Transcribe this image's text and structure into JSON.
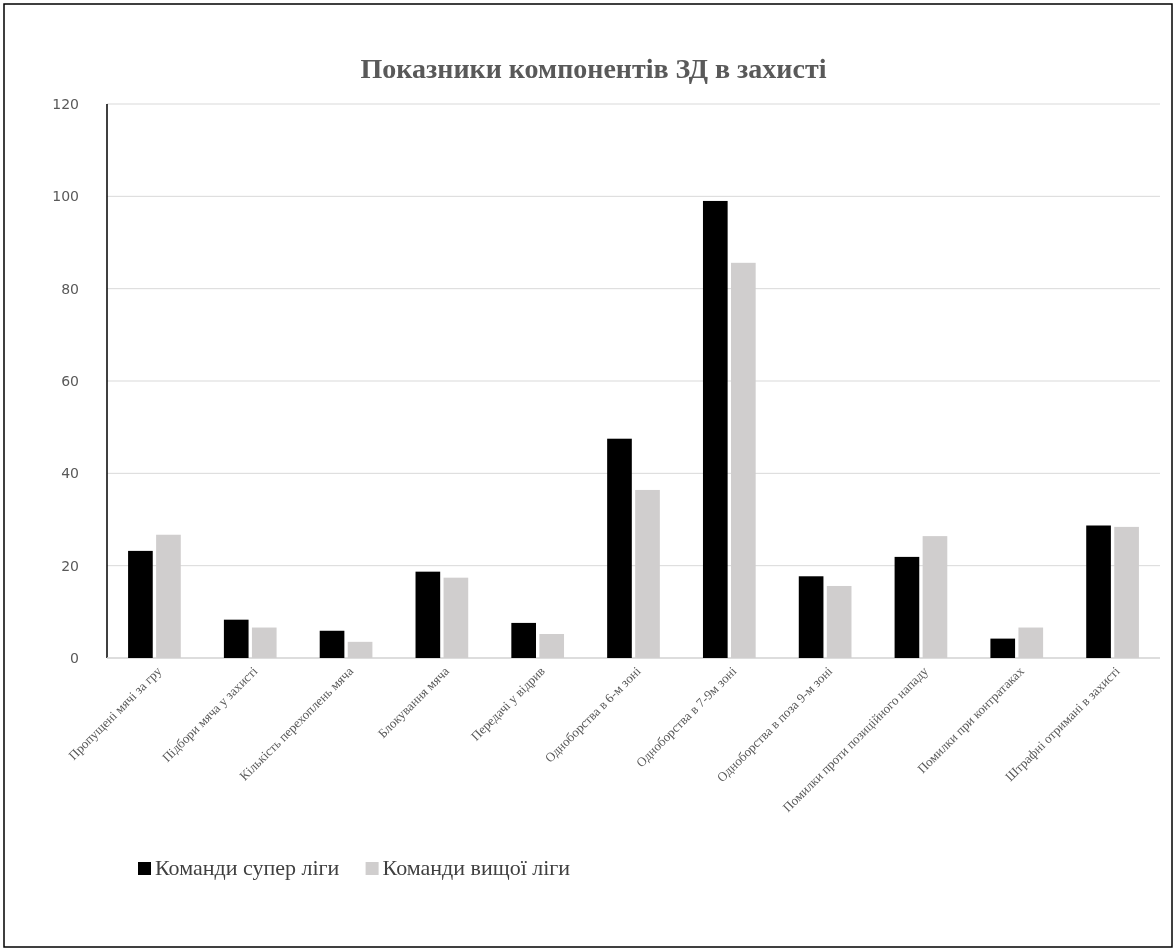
{
  "chart_data": {
    "type": "bar",
    "title": "Показники компонентів ЗД в захисті",
    "categories": [
      "Пропущені мячі за гру",
      "Підбори мяча у захисті",
      "Кількість перехоплень мяча",
      "Блокування мяча",
      "Передачі у відрив",
      "Одноборства в 6-м зоні",
      "Одноборства в 7-9м зоні",
      "Одноборства в поза 9-м зоні",
      "Помилки проти позиційного нападу",
      "Помилки при контратаках",
      "Штрафні отримані в захисті"
    ],
    "series": [
      {
        "name": "Команди супер ліги",
        "color": "#000000",
        "values": [
          23.2,
          8.3,
          5.9,
          18.7,
          7.6,
          47.5,
          99,
          17.7,
          21.9,
          4.2,
          28.7
        ]
      },
      {
        "name": "Команди вищої ліги",
        "color": "#d0cece",
        "values": [
          26.7,
          6.6,
          3.5,
          17.4,
          5.2,
          36.4,
          85.6,
          15.6,
          26.4,
          6.6,
          28.4
        ]
      }
    ],
    "ylim": [
      0,
      120
    ],
    "yticks": [
      0,
      20,
      40,
      60,
      80,
      100,
      120
    ],
    "grid": "y",
    "legend": "bottom"
  }
}
